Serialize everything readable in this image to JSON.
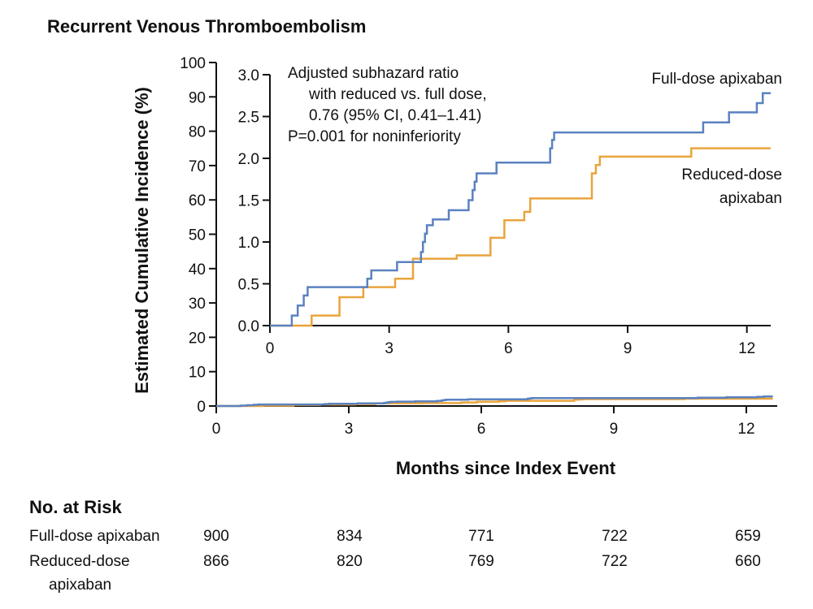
{
  "chart_data": {
    "type": "line",
    "title": "Recurrent Venous Thromboembolism",
    "xlabel": "Months since Index Event",
    "ylabel": "Estimated Cumulative Incidence (%)",
    "x_ticks": [
      0,
      3,
      6,
      9,
      12
    ],
    "y_ticks": [
      0,
      10,
      20,
      30,
      40,
      50,
      60,
      70,
      80,
      90,
      100
    ],
    "xlim": [
      0,
      12.7
    ],
    "ylim": [
      0,
      100
    ],
    "inset": {
      "x_ticks": [
        0,
        3,
        6,
        9,
        12
      ],
      "y_ticks": [
        0.0,
        0.5,
        1.0,
        1.5,
        2.0,
        2.5,
        3.0
      ],
      "y_tick_labels": [
        "0.0",
        "0.5",
        "1.0",
        "1.5",
        "2.0",
        "2.5",
        "3.0"
      ],
      "xlim": [
        0,
        12.6
      ],
      "ylim": [
        0,
        3.0
      ]
    },
    "annotation": [
      "Adjusted subhazard ratio",
      "with reduced vs. full dose,",
      "0.76 (95% CI, 0.41–1.41)",
      "P=0.001 for noninferiority"
    ],
    "series": [
      {
        "name": "Full-dose apixaban",
        "label_lines": [
          "Full-dose apixaban"
        ],
        "color": "#5b82c0",
        "x": [
          0,
          0.55,
          0.7,
          0.85,
          0.95,
          2.2,
          2.45,
          2.55,
          3.2,
          3.35,
          3.8,
          3.85,
          3.9,
          3.95,
          4.1,
          4.5,
          5.0,
          5.1,
          5.15,
          5.2,
          5.3,
          5.7,
          5.8,
          7.05,
          7.1,
          7.15,
          10.9,
          11.55,
          12.25,
          12.4,
          12.55,
          12.6
        ],
        "y": [
          0,
          0.12,
          0.24,
          0.36,
          0.46,
          0.46,
          0.56,
          0.66,
          0.76,
          0.76,
          0.88,
          1.0,
          1.1,
          1.2,
          1.27,
          1.38,
          1.5,
          1.62,
          1.72,
          1.82,
          1.82,
          1.95,
          1.95,
          2.12,
          2.22,
          2.31,
          2.43,
          2.55,
          2.66,
          2.78,
          2.78,
          2.78
        ]
      },
      {
        "name": "Reduced-dose apixaban",
        "label_lines": [
          "Reduced-dose",
          "apixaban"
        ],
        "color": "#e9a43c",
        "x": [
          0,
          1.05,
          1.75,
          2.35,
          3.15,
          3.6,
          4.7,
          5.55,
          5.9,
          6.4,
          6.55,
          8.1,
          8.2,
          8.3,
          10.6,
          12.6
        ],
        "y": [
          0,
          0.12,
          0.34,
          0.46,
          0.56,
          0.8,
          0.84,
          1.05,
          1.26,
          1.36,
          1.52,
          1.82,
          1.92,
          2.02,
          2.12,
          2.12
        ]
      }
    ],
    "risk_table": {
      "title": "No. at Risk",
      "months": [
        0,
        3,
        6,
        9,
        12
      ],
      "rows": [
        {
          "label_lines": [
            "Full-dose apixaban"
          ],
          "values": [
            900,
            834,
            771,
            722,
            659
          ]
        },
        {
          "label_lines": [
            "Reduced-dose",
            "apixaban"
          ],
          "values": [
            866,
            820,
            769,
            722,
            660
          ]
        }
      ]
    }
  }
}
